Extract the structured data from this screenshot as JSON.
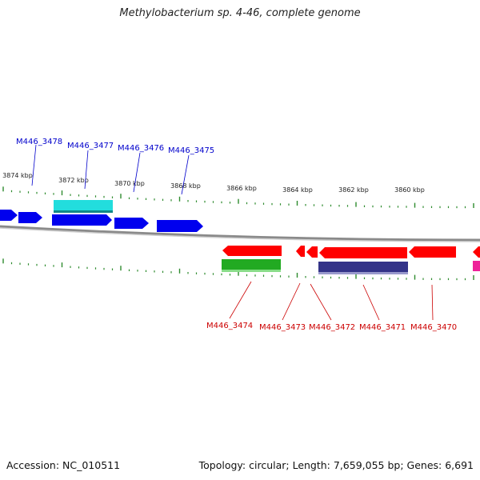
{
  "title": "Methylobacterium sp. 4-46, complete genome",
  "footer": {
    "accession": "Accession: NC_010511",
    "summary": "Topology: circular; Length: 7,659,055 bp; Genes: 6,691"
  },
  "colors": {
    "backbone": "#8a8a8a",
    "ticks": "#2e8b2e",
    "forward_label": "#0000cc",
    "reverse_label": "#cc0000",
    "blue_gene": "#0000ee",
    "cyan_gene": "#22dddd",
    "red_gene": "#ff0000",
    "green_gene": "#22aa22",
    "navy_gene": "#333388",
    "magenta_gene": "#ee2299"
  },
  "kbp_labels": [
    "3874 kbp",
    "3872 kbp",
    "3870 kbp",
    "3868 kbp",
    "3866 kbp",
    "3864 kbp",
    "3862 kbp",
    "3860 kbp"
  ],
  "forward_gene_labels": [
    "M446_3478",
    "M446_3477",
    "M446_3476",
    "M446_3475"
  ],
  "reverse_gene_labels": [
    "M446_3474",
    "M446_3473",
    "M446_3472",
    "M446_3471",
    "M446_3470"
  ]
}
